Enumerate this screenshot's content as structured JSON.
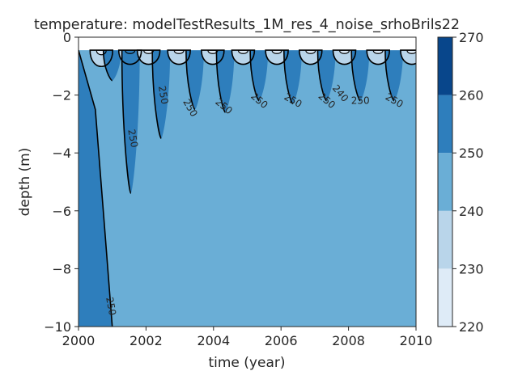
{
  "chart_data": {
    "type": "contour",
    "title": "temperature: modelTestResults_1M_res_4_noise_srhoBrils22",
    "xlabel": "time (year)",
    "ylabel": "depth (m)",
    "xlim": [
      2000,
      2010
    ],
    "ylim": [
      -10,
      0
    ],
    "xticks": [
      "2000",
      "2002",
      "2004",
      "2006",
      "2008",
      "2010"
    ],
    "yticks": [
      "0",
      "−2",
      "−4",
      "−6",
      "−8",
      "−10"
    ],
    "surface_depth": -0.45,
    "levels": [
      220,
      230,
      240,
      250,
      260,
      270
    ],
    "level_colors": [
      "#deebf7",
      "#b9d5ea",
      "#6aaed6",
      "#2e7ebc",
      "#08468b"
    ],
    "colorbar": {
      "ticks": [
        "220",
        "230",
        "240",
        "250",
        "260",
        "270"
      ]
    },
    "background_level_band": 240,
    "initial_warm_front": [
      {
        "x": 2000.0,
        "y": -0.45
      },
      {
        "x": 2000.5,
        "y": -2.5
      },
      {
        "x": 2000.8,
        "y": -7.0
      },
      {
        "x": 2001.0,
        "y": -10.0
      }
    ],
    "seasonal_cycles": [
      {
        "year": 2000.15,
        "warm_depth": -0.45,
        "cold_depth": -1.2
      },
      {
        "year": 2001.0,
        "warm_depth": -1.5,
        "cold_depth": -1.1
      },
      {
        "year": 2001.55,
        "warm_depth": -5.4,
        "cold_depth": -1.1
      },
      {
        "year": 2002.45,
        "warm_depth": -3.5,
        "cold_depth": -1.1
      },
      {
        "year": 2003.45,
        "warm_depth": -2.5,
        "cold_depth": -1.1
      },
      {
        "year": 2004.35,
        "warm_depth": -2.6,
        "cold_depth": -1.1
      },
      {
        "year": 2005.35,
        "warm_depth": -2.2,
        "cold_depth": -1.1
      },
      {
        "year": 2006.35,
        "warm_depth": -2.3,
        "cold_depth": -1.1
      },
      {
        "year": 2007.35,
        "warm_depth": -2.2,
        "cold_depth": -1.1
      },
      {
        "year": 2008.35,
        "warm_depth": -2.2,
        "cold_depth": -1.1
      },
      {
        "year": 2009.35,
        "warm_depth": -2.2,
        "cold_depth": -1.1
      }
    ],
    "contour_labels": [
      {
        "text": "250",
        "x": 2000.95,
        "y": -9.3,
        "angle": 80
      },
      {
        "text": "250",
        "x": 2001.6,
        "y": -3.5,
        "angle": 80
      },
      {
        "text": "250",
        "x": 2002.5,
        "y": -2.0,
        "angle": 80
      },
      {
        "text": "250",
        "x": 2003.3,
        "y": -2.45,
        "angle": 60
      },
      {
        "text": "250",
        "x": 2004.3,
        "y": -2.4,
        "angle": 40
      },
      {
        "text": "250",
        "x": 2005.35,
        "y": -2.2,
        "angle": 40
      },
      {
        "text": "250",
        "x": 2006.35,
        "y": -2.2,
        "angle": 30
      },
      {
        "text": "250",
        "x": 2007.35,
        "y": -2.2,
        "angle": 40
      },
      {
        "text": "240",
        "x": 2007.75,
        "y": -1.95,
        "angle": 50
      },
      {
        "text": "250",
        "x": 2008.35,
        "y": -2.2,
        "angle": 0
      },
      {
        "text": "250",
        "x": 2009.35,
        "y": -2.2,
        "angle": 30
      }
    ]
  }
}
